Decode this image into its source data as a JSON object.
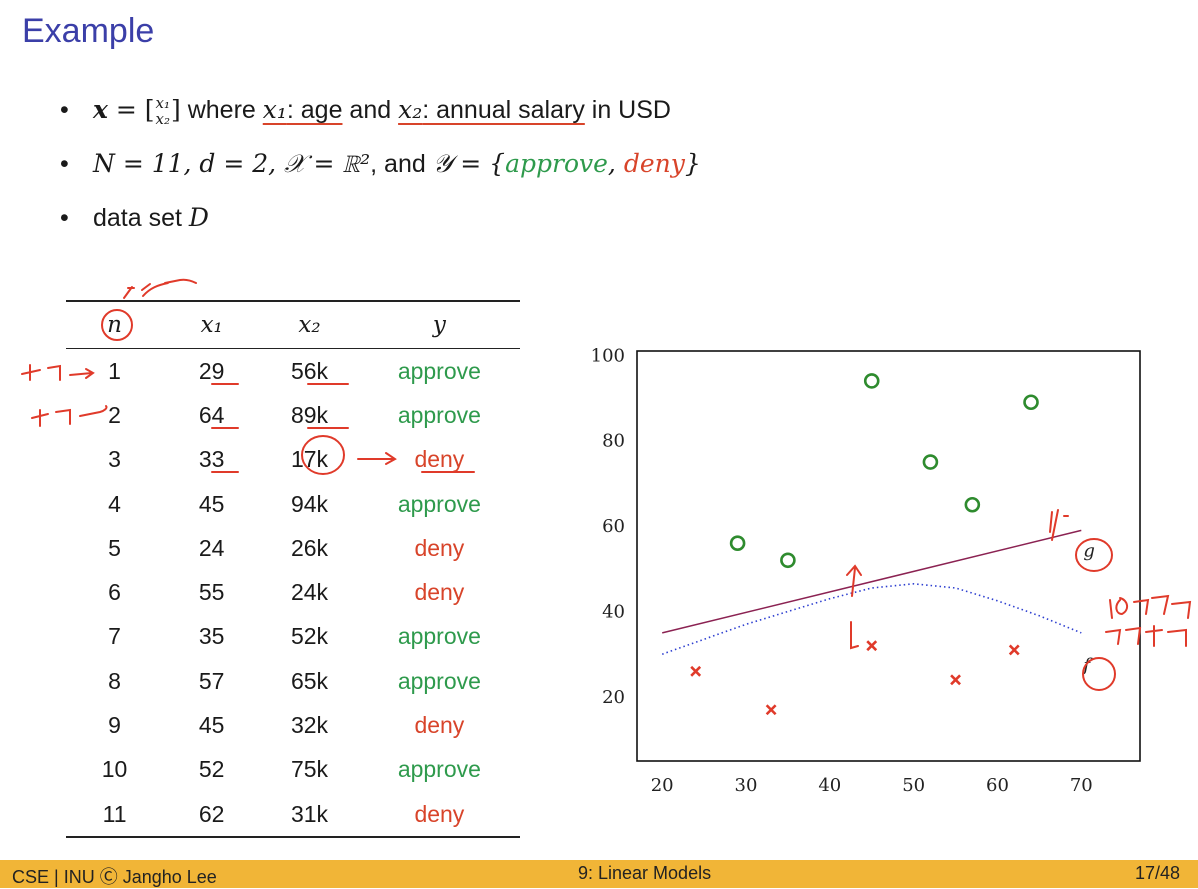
{
  "slide": {
    "title": "Example",
    "bullet1": {
      "x": "x",
      "eq": " = ",
      "x1": "x₁",
      "x2": "x₂",
      "where": " where ",
      "age_var": "x₁",
      "age_label": ": age",
      "and": " and ",
      "sal_var": "x₂",
      "sal_label": ": annual salary",
      "sal_tail": " in USD"
    },
    "bullet2": {
      "part1": "N = 11, d = 2, 𝒳 = ℝ²",
      "and": ", and ",
      "ycal": "𝒴 = {",
      "approve": "approve",
      "comma": ", ",
      "deny": "deny",
      "close": "}"
    },
    "bullet3": {
      "text": "data set ",
      "D": "D"
    },
    "bullet_symbol": "•"
  },
  "table": {
    "headers": [
      "n",
      "x₁",
      "x₂",
      "y"
    ],
    "rows": [
      [
        "1",
        "29",
        "56k",
        "approve"
      ],
      [
        "2",
        "64",
        "89k",
        "approve"
      ],
      [
        "3",
        "33",
        "17k",
        "deny"
      ],
      [
        "4",
        "45",
        "94k",
        "approve"
      ],
      [
        "5",
        "24",
        "26k",
        "deny"
      ],
      [
        "6",
        "55",
        "24k",
        "deny"
      ],
      [
        "7",
        "35",
        "52k",
        "approve"
      ],
      [
        "8",
        "57",
        "65k",
        "approve"
      ],
      [
        "9",
        "45",
        "32k",
        "deny"
      ],
      [
        "10",
        "52",
        "75k",
        "approve"
      ],
      [
        "11",
        "62",
        "31k",
        "deny"
      ]
    ]
  },
  "chart_data": {
    "type": "scatter",
    "title": "",
    "xlabel": "",
    "ylabel": "",
    "xlim": [
      17,
      77
    ],
    "ylim": [
      5,
      101
    ],
    "xticks": [
      20,
      30,
      40,
      50,
      60,
      70
    ],
    "yticks": [
      20,
      40,
      60,
      80,
      100
    ],
    "series": [
      {
        "name": "approve",
        "marker": "circle",
        "color": "#2e8b2e",
        "points": [
          [
            29,
            56
          ],
          [
            64,
            89
          ],
          [
            45,
            94
          ],
          [
            35,
            52
          ],
          [
            57,
            65
          ],
          [
            52,
            75
          ]
        ]
      },
      {
        "name": "deny",
        "marker": "x",
        "color": "#e03a2a",
        "points": [
          [
            33,
            17
          ],
          [
            24,
            26
          ],
          [
            55,
            24
          ],
          [
            45,
            32
          ],
          [
            62,
            31
          ]
        ]
      }
    ],
    "lines": [
      {
        "label": "g",
        "style": "solid",
        "color": "#8b2252",
        "points": [
          [
            20,
            35
          ],
          [
            70,
            59
          ]
        ]
      },
      {
        "label": "f",
        "style": "dotted",
        "color": "#2d3fd0",
        "points": [
          [
            20,
            30
          ],
          [
            30,
            37
          ],
          [
            40,
            43
          ],
          [
            45,
            45.5
          ],
          [
            50,
            46.5
          ],
          [
            55,
            45.5
          ],
          [
            60,
            42.5
          ],
          [
            65,
            39
          ],
          [
            70,
            35
          ]
        ]
      }
    ],
    "grid": false
  },
  "footer": {
    "left": "CSE | INU Ⓒ Jangho Lee",
    "center": "9: Linear Models",
    "right": "17/48"
  },
  "colors": {
    "approve": "#2e9a4c",
    "deny": "#d8442a",
    "title": "#3b3fa8",
    "footer_bg": "#f1b537"
  }
}
